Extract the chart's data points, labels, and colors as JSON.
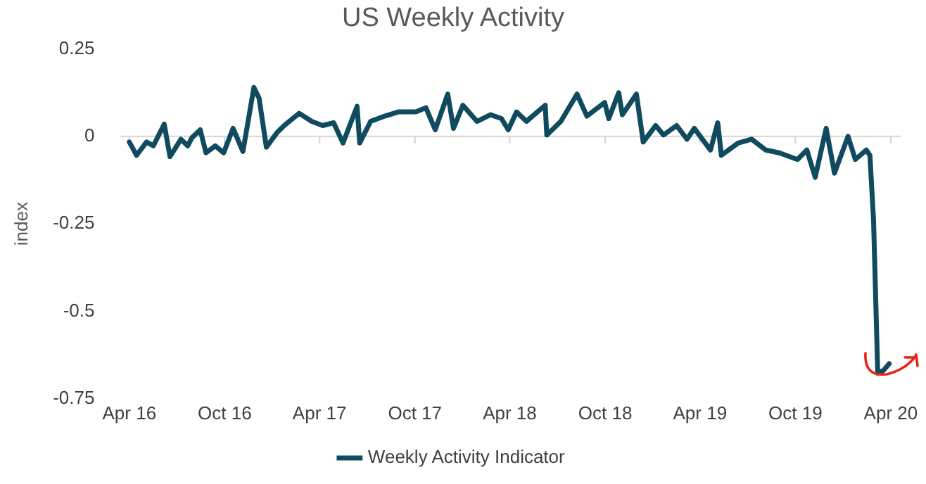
{
  "chart_data": {
    "type": "line",
    "title": "US Weekly Activity",
    "ylabel": "index",
    "x": [
      "2016-04-01",
      "2016-04-15",
      "2016-05-04",
      "2016-05-17",
      "2016-06-07",
      "2016-06-18",
      "2016-07-09",
      "2016-07-22",
      "2016-07-30",
      "2016-08-15",
      "2016-08-26",
      "2016-09-13",
      "2016-09-29",
      "2016-10-17",
      "2016-11-05",
      "2016-11-26",
      "2016-12-06",
      "2016-12-20",
      "2017-01-10",
      "2017-01-23",
      "2017-02-21",
      "2017-03-17",
      "2017-04-07",
      "2017-04-28",
      "2017-05-16",
      "2017-06-12",
      "2017-06-17",
      "2017-07-08",
      "2017-08-04",
      "2017-08-30",
      "2017-10-03",
      "2017-10-22",
      "2017-11-09",
      "2017-12-03",
      "2017-12-14",
      "2018-01-01",
      "2018-01-28",
      "2018-02-23",
      "2018-03-16",
      "2018-03-29",
      "2018-04-14",
      "2018-05-03",
      "2018-06-08",
      "2018-06-11",
      "2018-07-08",
      "2018-08-08",
      "2018-08-27",
      "2018-09-30",
      "2018-10-08",
      "2018-10-27",
      "2018-11-03",
      "2018-11-30",
      "2018-12-13",
      "2019-01-06",
      "2019-01-21",
      "2019-02-15",
      "2019-03-07",
      "2019-03-21",
      "2019-04-21",
      "2019-05-05",
      "2019-05-12",
      "2019-06-13",
      "2019-07-09",
      "2019-08-05",
      "2019-08-31",
      "2019-10-05",
      "2019-10-23",
      "2019-11-08",
      "2019-11-29",
      "2019-12-15",
      "2020-01-10",
      "2020-01-24",
      "2020-02-14",
      "2020-02-21",
      "2020-02-28",
      "2020-03-07",
      "2020-03-18",
      "2020-03-29"
    ],
    "series": [
      {
        "name": "Weekly Activity Indicator",
        "color": "#0f4a5e",
        "values": [
          -0.016,
          -0.054,
          -0.016,
          -0.027,
          0.035,
          -0.058,
          -0.008,
          -0.027,
          -0.004,
          0.019,
          -0.047,
          -0.027,
          -0.047,
          0.023,
          -0.043,
          0.14,
          0.109,
          -0.031,
          0.012,
          0.031,
          0.066,
          0.043,
          0.031,
          0.039,
          -0.019,
          0.086,
          -0.019,
          0.043,
          0.058,
          0.07,
          0.07,
          0.082,
          0.019,
          0.121,
          0.023,
          0.089,
          0.043,
          0.062,
          0.051,
          0.019,
          0.07,
          0.043,
          0.089,
          0.004,
          0.043,
          0.121,
          0.058,
          0.097,
          0.051,
          0.125,
          0.062,
          0.121,
          -0.016,
          0.031,
          0.004,
          0.031,
          -0.008,
          0.023,
          -0.039,
          0.039,
          -0.054,
          -0.019,
          -0.008,
          -0.039,
          -0.047,
          -0.066,
          -0.039,
          -0.117,
          0.023,
          -0.105,
          0,
          -0.066,
          -0.039,
          -0.054,
          -0.241,
          -0.677,
          -0.669,
          -0.65
        ]
      }
    ],
    "xlim": [
      "2016-03-14",
      "2020-04-20"
    ],
    "xticks": [
      {
        "value": "2016-04-01",
        "label": "Apr 16"
      },
      {
        "value": "2016-10-01",
        "label": "Oct 16"
      },
      {
        "value": "2017-04-01",
        "label": "Apr 17"
      },
      {
        "value": "2017-10-01",
        "label": "Oct 17"
      },
      {
        "value": "2018-04-01",
        "label": "Apr 18"
      },
      {
        "value": "2018-10-01",
        "label": "Oct 18"
      },
      {
        "value": "2019-04-01",
        "label": "Apr 19"
      },
      {
        "value": "2019-10-01",
        "label": "Oct 19"
      },
      {
        "value": "2020-04-01",
        "label": "Apr 20"
      }
    ],
    "ylim": [
      -0.75,
      0.25
    ],
    "yticks": [
      0.25,
      0,
      -0.25,
      -0.5,
      -0.75
    ],
    "ref_lines": [
      {
        "axis": "y",
        "value": 0,
        "color": "#d9d9d9"
      }
    ],
    "grid": false,
    "legend": "bottom",
    "marker": "none",
    "line_style": "solid"
  }
}
